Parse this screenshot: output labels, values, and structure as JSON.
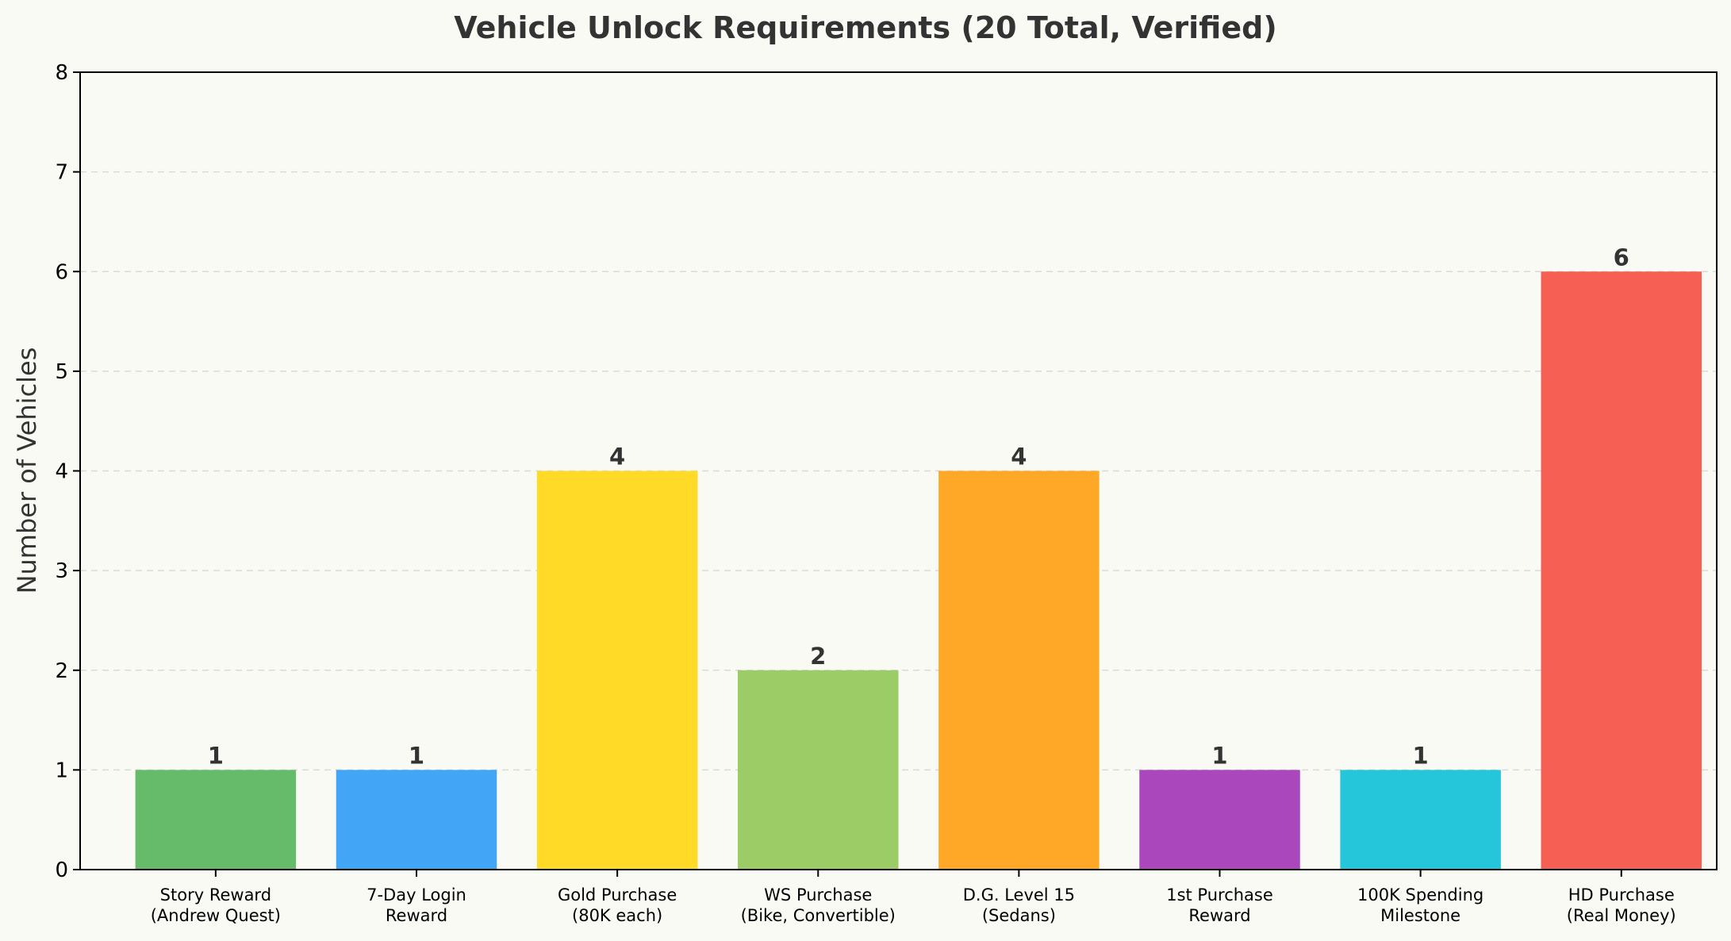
{
  "chart_data": {
    "type": "bar",
    "title": "Vehicle Unlock Requirements (20 Total, Verified)",
    "xlabel": "",
    "ylabel": "Number of Vehicles",
    "ylim": [
      0,
      8
    ],
    "yticks": [
      0,
      1,
      2,
      3,
      4,
      5,
      6,
      7,
      8
    ],
    "grid": "y-dashed",
    "categories": [
      [
        "Story Reward",
        "(Andrew Quest)"
      ],
      [
        "7-Day Login",
        "Reward"
      ],
      [
        "Gold Purchase",
        "(80K each)"
      ],
      [
        "WS Purchase",
        "(Bike, Convertible)"
      ],
      [
        "D.G. Level 15",
        "(Sedans)"
      ],
      [
        "1st Purchase",
        "Reward"
      ],
      [
        "100K Spending",
        "Milestone"
      ],
      [
        "HD Purchase",
        "(Real Money)"
      ]
    ],
    "values": [
      1,
      1,
      4,
      2,
      4,
      1,
      1,
      6
    ],
    "colors": [
      "#66BB6A",
      "#42A5F5",
      "#FFDA27",
      "#9CCC65",
      "#FFA726",
      "#AB47BC",
      "#26C6DA",
      "#F55F54"
    ]
  }
}
